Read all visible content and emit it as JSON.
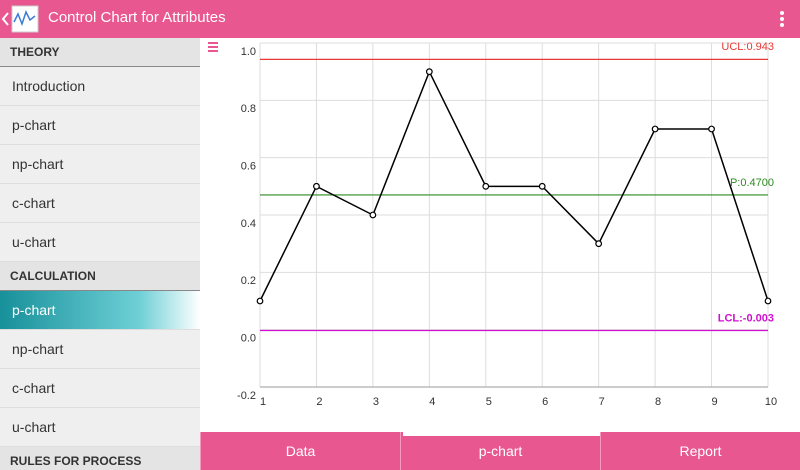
{
  "app": {
    "title": "Control Chart for Attributes"
  },
  "sidebar": {
    "sections": [
      {
        "header": "THEORY",
        "items": [
          "Introduction",
          "p-chart",
          "np-chart",
          "c-chart",
          "u-chart"
        ]
      },
      {
        "header": "CALCULATION",
        "items": [
          "p-chart",
          "np-chart",
          "c-chart",
          "u-chart"
        ]
      },
      {
        "header": "RULES FOR PROCESS CONTROL",
        "items": []
      }
    ]
  },
  "chart_data": {
    "type": "line",
    "x": [
      1,
      2,
      3,
      4,
      5,
      6,
      7,
      8,
      9,
      10
    ],
    "series": [
      {
        "color": "#000000",
        "values": [
          0.1,
          0.5,
          0.4,
          0.9,
          0.5,
          0.5,
          0.3,
          0.7,
          0.7,
          0.1
        ]
      }
    ],
    "xlim": [
      1,
      10
    ],
    "xticks": [
      1,
      2,
      3,
      4,
      5,
      6,
      7,
      8,
      9,
      10
    ],
    "ylim": [
      -0.2,
      1.0
    ],
    "yticks": [
      {
        "value": -0.2,
        "label": "-0.2"
      },
      {
        "value": 0,
        "label": "0.0"
      },
      {
        "value": 0.2,
        "label": "0.2"
      },
      {
        "value": 0.4,
        "label": "0.4"
      },
      {
        "value": 0.6,
        "label": "0.6"
      },
      {
        "value": 0.8,
        "label": "0.8"
      },
      {
        "value": 1.0,
        "label": "1.0"
      }
    ],
    "grid": true,
    "control_lines": [
      {
        "label": "UCL:0.943",
        "value": 0.943,
        "color": "#e53935"
      },
      {
        "label": "P:0.4700",
        "value": 0.47,
        "color": "#2e8b22"
      },
      {
        "label": "LCL:-0.003",
        "value": -0.003,
        "color": "#d010d0"
      }
    ]
  },
  "tabs": [
    "Data",
    "p-chart",
    "Report"
  ]
}
